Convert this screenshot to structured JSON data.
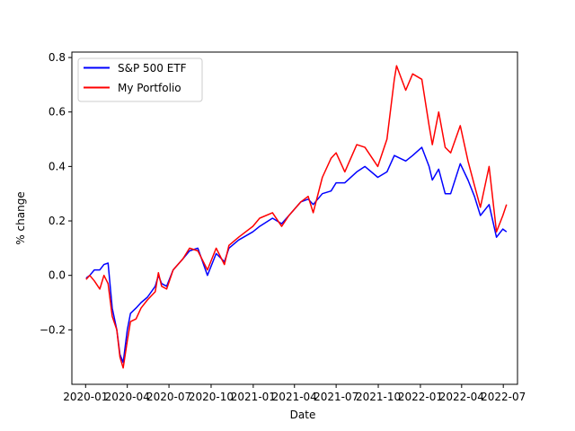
{
  "chart_data": {
    "type": "line",
    "title": "",
    "xlabel": "Date",
    "ylabel": "% change",
    "xlim": [
      "2019-12-02",
      "2022-08-01"
    ],
    "ylim": [
      -0.4,
      0.82
    ],
    "x_ticks": [
      "2020-01",
      "2020-04",
      "2020-07",
      "2020-10",
      "2021-01",
      "2021-04",
      "2021-07",
      "2021-10",
      "2022-01",
      "2022-04",
      "2022-07"
    ],
    "x_tick_labels": [
      "2020-01",
      "2020-04",
      "2020-07",
      "2020-10",
      "2021-01",
      "2021-04",
      "2021-07",
      "2021-10",
      "2022-01",
      "2022-04",
      "2022-07"
    ],
    "y_ticks": [
      -0.2,
      0.0,
      0.2,
      0.4,
      0.6,
      0.8
    ],
    "y_tick_labels": [
      "−0.2",
      "0.0",
      "0.2",
      "0.4",
      "0.6",
      "0.8"
    ],
    "grid": false,
    "legend_position": "top-left",
    "series": [
      {
        "name": "S&P 500 ETF",
        "color": "#0000ff",
        "points": [
          [
            "2020-01-02",
            -0.01
          ],
          [
            "2020-01-10",
            0.0
          ],
          [
            "2020-01-20",
            0.02
          ],
          [
            "2020-02-01",
            0.02
          ],
          [
            "2020-02-10",
            0.04
          ],
          [
            "2020-02-19",
            0.045
          ],
          [
            "2020-02-28",
            -0.12
          ],
          [
            "2020-03-09",
            -0.2
          ],
          [
            "2020-03-16",
            -0.29
          ],
          [
            "2020-03-23",
            -0.32
          ],
          [
            "2020-04-01",
            -0.2
          ],
          [
            "2020-04-08",
            -0.14
          ],
          [
            "2020-04-20",
            -0.12
          ],
          [
            "2020-05-01",
            -0.1
          ],
          [
            "2020-05-15",
            -0.08
          ],
          [
            "2020-06-01",
            -0.04
          ],
          [
            "2020-06-08",
            0.0
          ],
          [
            "2020-06-15",
            -0.03
          ],
          [
            "2020-06-26",
            -0.04
          ],
          [
            "2020-07-10",
            0.02
          ],
          [
            "2020-07-31",
            0.06
          ],
          [
            "2020-08-15",
            0.09
          ],
          [
            "2020-09-02",
            0.1
          ],
          [
            "2020-09-23",
            0.0
          ],
          [
            "2020-10-12",
            0.08
          ],
          [
            "2020-10-30",
            0.05
          ],
          [
            "2020-11-09",
            0.1
          ],
          [
            "2020-11-30",
            0.13
          ],
          [
            "2020-12-31",
            0.16
          ],
          [
            "2021-01-15",
            0.18
          ],
          [
            "2021-02-12",
            0.21
          ],
          [
            "2021-03-04",
            0.19
          ],
          [
            "2021-03-20",
            0.22
          ],
          [
            "2021-04-15",
            0.27
          ],
          [
            "2021-05-01",
            0.28
          ],
          [
            "2021-05-12",
            0.26
          ],
          [
            "2021-06-01",
            0.3
          ],
          [
            "2021-06-20",
            0.31
          ],
          [
            "2021-07-01",
            0.34
          ],
          [
            "2021-07-20",
            0.34
          ],
          [
            "2021-08-15",
            0.38
          ],
          [
            "2021-09-02",
            0.4
          ],
          [
            "2021-09-30",
            0.36
          ],
          [
            "2021-10-20",
            0.38
          ],
          [
            "2021-11-05",
            0.44
          ],
          [
            "2021-11-30",
            0.42
          ],
          [
            "2021-12-15",
            0.44
          ],
          [
            "2022-01-04",
            0.47
          ],
          [
            "2022-01-20",
            0.4
          ],
          [
            "2022-01-27",
            0.35
          ],
          [
            "2022-02-10",
            0.39
          ],
          [
            "2022-02-24",
            0.3
          ],
          [
            "2022-03-08",
            0.3
          ],
          [
            "2022-03-29",
            0.41
          ],
          [
            "2022-04-15",
            0.35
          ],
          [
            "2022-04-29",
            0.29
          ],
          [
            "2022-05-12",
            0.22
          ],
          [
            "2022-05-31",
            0.26
          ],
          [
            "2022-06-16",
            0.14
          ],
          [
            "2022-06-30",
            0.17
          ],
          [
            "2022-07-08",
            0.16
          ]
        ]
      },
      {
        "name": "My Portfolio",
        "color": "#ff0000",
        "points": [
          [
            "2020-01-02",
            -0.015
          ],
          [
            "2020-01-10",
            0.0
          ],
          [
            "2020-01-20",
            -0.02
          ],
          [
            "2020-02-01",
            -0.05
          ],
          [
            "2020-02-10",
            0.0
          ],
          [
            "2020-02-19",
            -0.03
          ],
          [
            "2020-02-28",
            -0.15
          ],
          [
            "2020-03-09",
            -0.2
          ],
          [
            "2020-03-16",
            -0.3
          ],
          [
            "2020-03-23",
            -0.34
          ],
          [
            "2020-04-01",
            -0.24
          ],
          [
            "2020-04-08",
            -0.17
          ],
          [
            "2020-04-20",
            -0.16
          ],
          [
            "2020-05-01",
            -0.12
          ],
          [
            "2020-05-15",
            -0.09
          ],
          [
            "2020-06-01",
            -0.06
          ],
          [
            "2020-06-08",
            0.01
          ],
          [
            "2020-06-15",
            -0.04
          ],
          [
            "2020-06-26",
            -0.05
          ],
          [
            "2020-07-10",
            0.02
          ],
          [
            "2020-07-31",
            0.06
          ],
          [
            "2020-08-15",
            0.1
          ],
          [
            "2020-09-02",
            0.09
          ],
          [
            "2020-09-23",
            0.02
          ],
          [
            "2020-10-12",
            0.1
          ],
          [
            "2020-10-30",
            0.04
          ],
          [
            "2020-11-09",
            0.11
          ],
          [
            "2020-11-30",
            0.14
          ],
          [
            "2020-12-31",
            0.18
          ],
          [
            "2021-01-15",
            0.21
          ],
          [
            "2021-02-12",
            0.23
          ],
          [
            "2021-03-04",
            0.18
          ],
          [
            "2021-03-20",
            0.22
          ],
          [
            "2021-04-15",
            0.27
          ],
          [
            "2021-05-01",
            0.29
          ],
          [
            "2021-05-12",
            0.23
          ],
          [
            "2021-06-01",
            0.36
          ],
          [
            "2021-06-20",
            0.43
          ],
          [
            "2021-07-01",
            0.45
          ],
          [
            "2021-07-20",
            0.38
          ],
          [
            "2021-08-15",
            0.48
          ],
          [
            "2021-09-02",
            0.47
          ],
          [
            "2021-09-30",
            0.4
          ],
          [
            "2021-10-20",
            0.5
          ],
          [
            "2021-11-05",
            0.72
          ],
          [
            "2021-11-10",
            0.77
          ],
          [
            "2021-11-30",
            0.68
          ],
          [
            "2021-12-15",
            0.74
          ],
          [
            "2022-01-04",
            0.72
          ],
          [
            "2022-01-20",
            0.55
          ],
          [
            "2022-01-27",
            0.48
          ],
          [
            "2022-02-10",
            0.6
          ],
          [
            "2022-02-24",
            0.47
          ],
          [
            "2022-03-08",
            0.45
          ],
          [
            "2022-03-29",
            0.55
          ],
          [
            "2022-04-15",
            0.42
          ],
          [
            "2022-04-29",
            0.33
          ],
          [
            "2022-05-12",
            0.25
          ],
          [
            "2022-05-31",
            0.4
          ],
          [
            "2022-06-16",
            0.16
          ],
          [
            "2022-06-30",
            0.22
          ],
          [
            "2022-07-08",
            0.26
          ]
        ]
      }
    ]
  }
}
